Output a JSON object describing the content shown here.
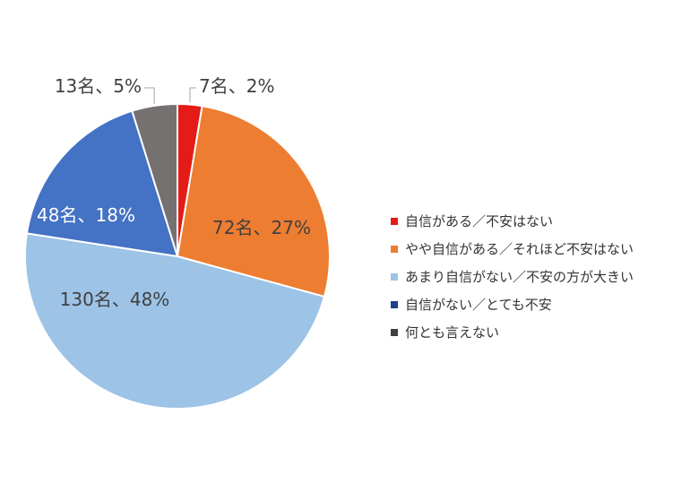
{
  "chart_data": {
    "type": "pie",
    "title": "",
    "legend_position": "right",
    "slices": [
      {
        "label": "自信がある／不安はない",
        "count": 7,
        "percent": 2,
        "data_label": "7名、2%",
        "color": "#e41b17"
      },
      {
        "label": "やや自信がある／それほど不安はない",
        "count": 72,
        "percent": 27,
        "data_label": "72名、27%",
        "color": "#ed7d31"
      },
      {
        "label": "あまり自信がない／不安の方が大きい",
        "count": 130,
        "percent": 48,
        "data_label": "130名、48%",
        "color": "#9dc3e6"
      },
      {
        "label": "自信がない／とても不安",
        "count": 48,
        "percent": 18,
        "data_label": "48名、18%",
        "color": "#4472c4"
      },
      {
        "label": "何とも言えない",
        "count": 13,
        "percent": 5,
        "data_label": "13名、5%",
        "color": "#767171"
      }
    ]
  }
}
